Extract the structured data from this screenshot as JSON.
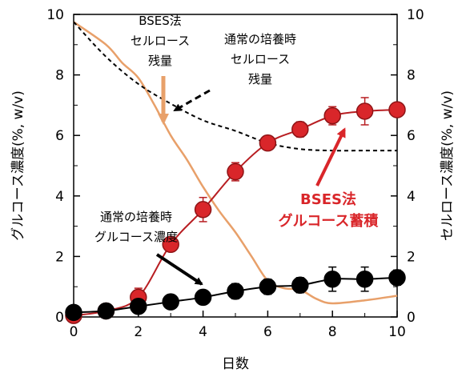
{
  "chart_data": {
    "type": "line",
    "x": [
      0,
      1,
      2,
      3,
      4,
      5,
      6,
      7,
      8,
      9,
      10
    ],
    "xlabel": "日数",
    "ylabel_left": "グルコース濃度(%, w/v)",
    "ylabel_right": "セルロース濃度(%, w/v)",
    "xlim": [
      0,
      10
    ],
    "ylim": [
      0,
      10
    ],
    "x_ticks": [
      "0",
      "2",
      "4",
      "6",
      "8",
      "10"
    ],
    "y_ticks": [
      "0",
      "2",
      "4",
      "6",
      "8",
      "10"
    ],
    "series": [
      {
        "name": "BSES法グルコース蓄積",
        "axis": "left",
        "style": "red-markers",
        "color": "#d9262a",
        "values": [
          0.05,
          0.2,
          0.65,
          2.4,
          3.55,
          4.8,
          5.75,
          6.2,
          6.65,
          6.8,
          6.85
        ],
        "errors": [
          0.05,
          0.1,
          0.3,
          0.15,
          0.4,
          0.3,
          0.2,
          0.25,
          0.3,
          0.45,
          0.2
        ]
      },
      {
        "name": "通常の培養時グルコース濃度",
        "axis": "left",
        "style": "black-markers",
        "color": "#000000",
        "values": [
          0.15,
          0.2,
          0.35,
          0.5,
          0.65,
          0.85,
          1.0,
          1.05,
          1.25,
          1.25,
          1.3
        ],
        "errors": [
          0.05,
          0.05,
          0.1,
          0.1,
          0.15,
          0.25,
          0.25,
          0.25,
          0.4,
          0.4,
          0.25
        ]
      },
      {
        "name": "BSES法セルロース残量",
        "axis": "right",
        "style": "orange-line",
        "color": "#e8a06a",
        "points": [
          [
            0,
            9.75
          ],
          [
            1,
            9.0
          ],
          [
            1.5,
            8.4
          ],
          [
            2,
            7.9
          ],
          [
            2.5,
            7.0
          ],
          [
            3,
            6.0
          ],
          [
            3.5,
            5.2
          ],
          [
            4,
            4.3
          ],
          [
            4.5,
            3.5
          ],
          [
            5,
            2.8
          ],
          [
            5.5,
            2.0
          ],
          [
            6,
            1.2
          ],
          [
            6.5,
            0.95
          ],
          [
            7,
            0.9
          ],
          [
            7.5,
            0.6
          ],
          [
            8,
            0.45
          ],
          [
            9,
            0.55
          ],
          [
            10,
            0.7
          ]
        ]
      },
      {
        "name": "通常の培養時セルロース残量",
        "axis": "right",
        "style": "black-dashed",
        "color": "#000000",
        "points": [
          [
            0,
            9.75
          ],
          [
            1,
            8.6
          ],
          [
            2,
            7.7
          ],
          [
            3,
            7.05
          ],
          [
            4,
            6.5
          ],
          [
            5,
            6.15
          ],
          [
            6,
            5.75
          ],
          [
            7,
            5.55
          ],
          [
            8,
            5.5
          ],
          [
            9,
            5.5
          ],
          [
            10,
            5.5
          ]
        ]
      }
    ],
    "annotations": {
      "bses_cellulose": [
        "BSES法",
        "セルロース",
        "残量"
      ],
      "normal_cellulose": [
        "通常の培養時",
        "セルロース",
        "残量"
      ],
      "normal_glucose": [
        "通常の培養時",
        "グルコース濃度"
      ],
      "bses_glucose": [
        "BSES法",
        "グルコース蓄積"
      ]
    }
  }
}
